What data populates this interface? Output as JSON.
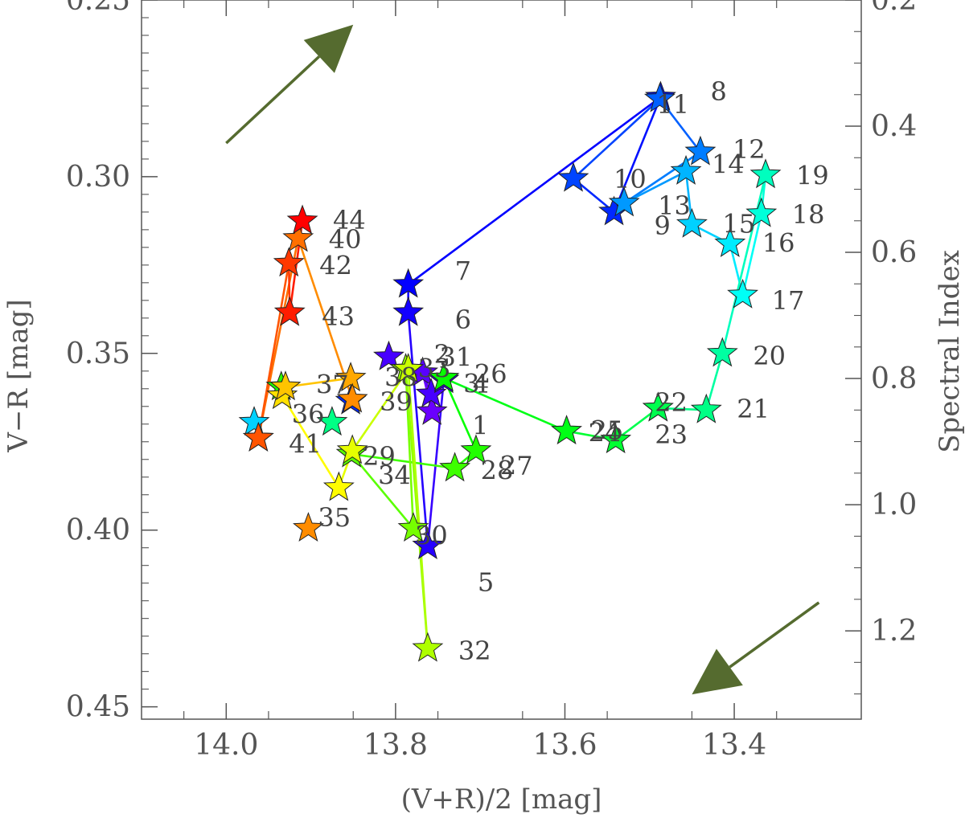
{
  "chart_data": {
    "type": "scatter",
    "title": "",
    "xlabel": "(V+R)/2 [mag]",
    "ylabel": "V−R [mag]",
    "y2label": "Spectral Index",
    "xlim": [
      14.1,
      13.25
    ],
    "ylim": [
      0.25,
      0.4535
    ],
    "y2lim": [
      0.2,
      1.34
    ],
    "xticks": [
      "14.0",
      "13.8",
      "13.6",
      "13.4"
    ],
    "yticks": [
      "0.25",
      "0.30",
      "0.35",
      "0.40",
      "0.45"
    ],
    "y2ticks": [
      "0.2",
      "0.4",
      "0.6",
      "0.8",
      "1.0",
      "1.2"
    ],
    "connected_in_order": true,
    "arrows": [
      {
        "from": [
          14.0,
          0.2905
        ],
        "to": [
          13.85,
          0.257
        ],
        "direction": "bluer-and-brighter"
      },
      {
        "from": [
          13.3,
          0.4205
        ],
        "to": [
          13.45,
          0.4465
        ],
        "direction": "redder-and-fainter"
      }
    ],
    "points": [
      {
        "label": "1",
        "x": 13.757,
        "y": 0.3665
      },
      {
        "label": "2",
        "x": 13.768,
        "y": 0.3555
      },
      {
        "label": "3",
        "x": 13.758,
        "y": 0.3615
      },
      {
        "label": "4",
        "x": 13.743,
        "y": 0.3575
      },
      {
        "label": "5",
        "x": 13.762,
        "y": 0.4045
      },
      {
        "label": "6",
        "x": 13.785,
        "y": 0.3385
      },
      {
        "label": "7",
        "x": 13.785,
        "y": 0.3305
      },
      {
        "label": "8",
        "x": 13.487,
        "y": 0.2775
      },
      {
        "label": "9",
        "x": 13.542,
        "y": 0.31
      },
      {
        "label": "10",
        "x": 13.59,
        "y": 0.3005
      },
      {
        "label": "11",
        "x": 13.488,
        "y": 0.278
      },
      {
        "label": "12",
        "x": 13.44,
        "y": 0.293
      },
      {
        "label": "13",
        "x": 13.53,
        "y": 0.3075
      },
      {
        "label": "14",
        "x": 13.457,
        "y": 0.2985
      },
      {
        "label": "15",
        "x": 13.45,
        "y": 0.3135
      },
      {
        "label": "16",
        "x": 13.405,
        "y": 0.319
      },
      {
        "label": "17",
        "x": 13.39,
        "y": 0.3335
      },
      {
        "label": "18",
        "x": 13.368,
        "y": 0.3105
      },
      {
        "label": "19",
        "x": 13.363,
        "y": 0.2995
      },
      {
        "label": "20",
        "x": 13.414,
        "y": 0.35
      },
      {
        "label": "21",
        "x": 13.433,
        "y": 0.366
      },
      {
        "label": "22",
        "x": 13.49,
        "y": 0.3655
      },
      {
        "label": "23",
        "x": 13.49,
        "y": 0.3655
      },
      {
        "label": "24",
        "x": 13.54,
        "y": 0.3745
      },
      {
        "label": "25",
        "x": 13.598,
        "y": 0.372
      },
      {
        "label": "26",
        "x": 13.743,
        "y": 0.357
      },
      {
        "label": "27",
        "x": 13.705,
        "y": 0.3775
      },
      {
        "label": "28",
        "x": 13.73,
        "y": 0.3825
      },
      {
        "label": "29",
        "x": 13.852,
        "y": 0.3785
      },
      {
        "label": "30",
        "x": 13.779,
        "y": 0.3995
      },
      {
        "label": "31",
        "x": 13.788,
        "y": 0.3545
      },
      {
        "label": "32",
        "x": 13.762,
        "y": 0.4335
      },
      {
        "label": "33",
        "x": 13.785,
        "y": 0.3545
      },
      {
        "label": "34",
        "x": 13.851,
        "y": 0.3775
      },
      {
        "label": "35",
        "x": 13.867,
        "y": 0.388
      },
      {
        "label": "36",
        "x": 13.934,
        "y": 0.362
      },
      {
        "label": "37",
        "x": 13.93,
        "y": 0.3595
      },
      {
        "label": "38",
        "x": 13.853,
        "y": 0.357
      },
      {
        "label": "39",
        "x": 13.851,
        "y": 0.363
      },
      {
        "label": "40",
        "x": 13.915,
        "y": 0.3175
      },
      {
        "label": "41",
        "x": 13.962,
        "y": 0.374
      },
      {
        "label": "42",
        "x": 13.926,
        "y": 0.3245
      },
      {
        "label": "43",
        "x": 13.925,
        "y": 0.3385
      },
      {
        "label": "44",
        "x": 13.91,
        "y": 0.3125
      }
    ],
    "extra_path_points": [
      {
        "x": 13.808,
        "y": 0.351
      },
      {
        "x": 13.853,
        "y": 0.3635
      },
      {
        "x": 13.967,
        "y": 0.3695
      },
      {
        "x": 13.875,
        "y": 0.3695
      },
      {
        "x": 13.935,
        "y": 0.3595
      },
      {
        "x": 13.962,
        "y": 0.374
      },
      {
        "x": 13.903,
        "y": 0.3995
      }
    ]
  }
}
